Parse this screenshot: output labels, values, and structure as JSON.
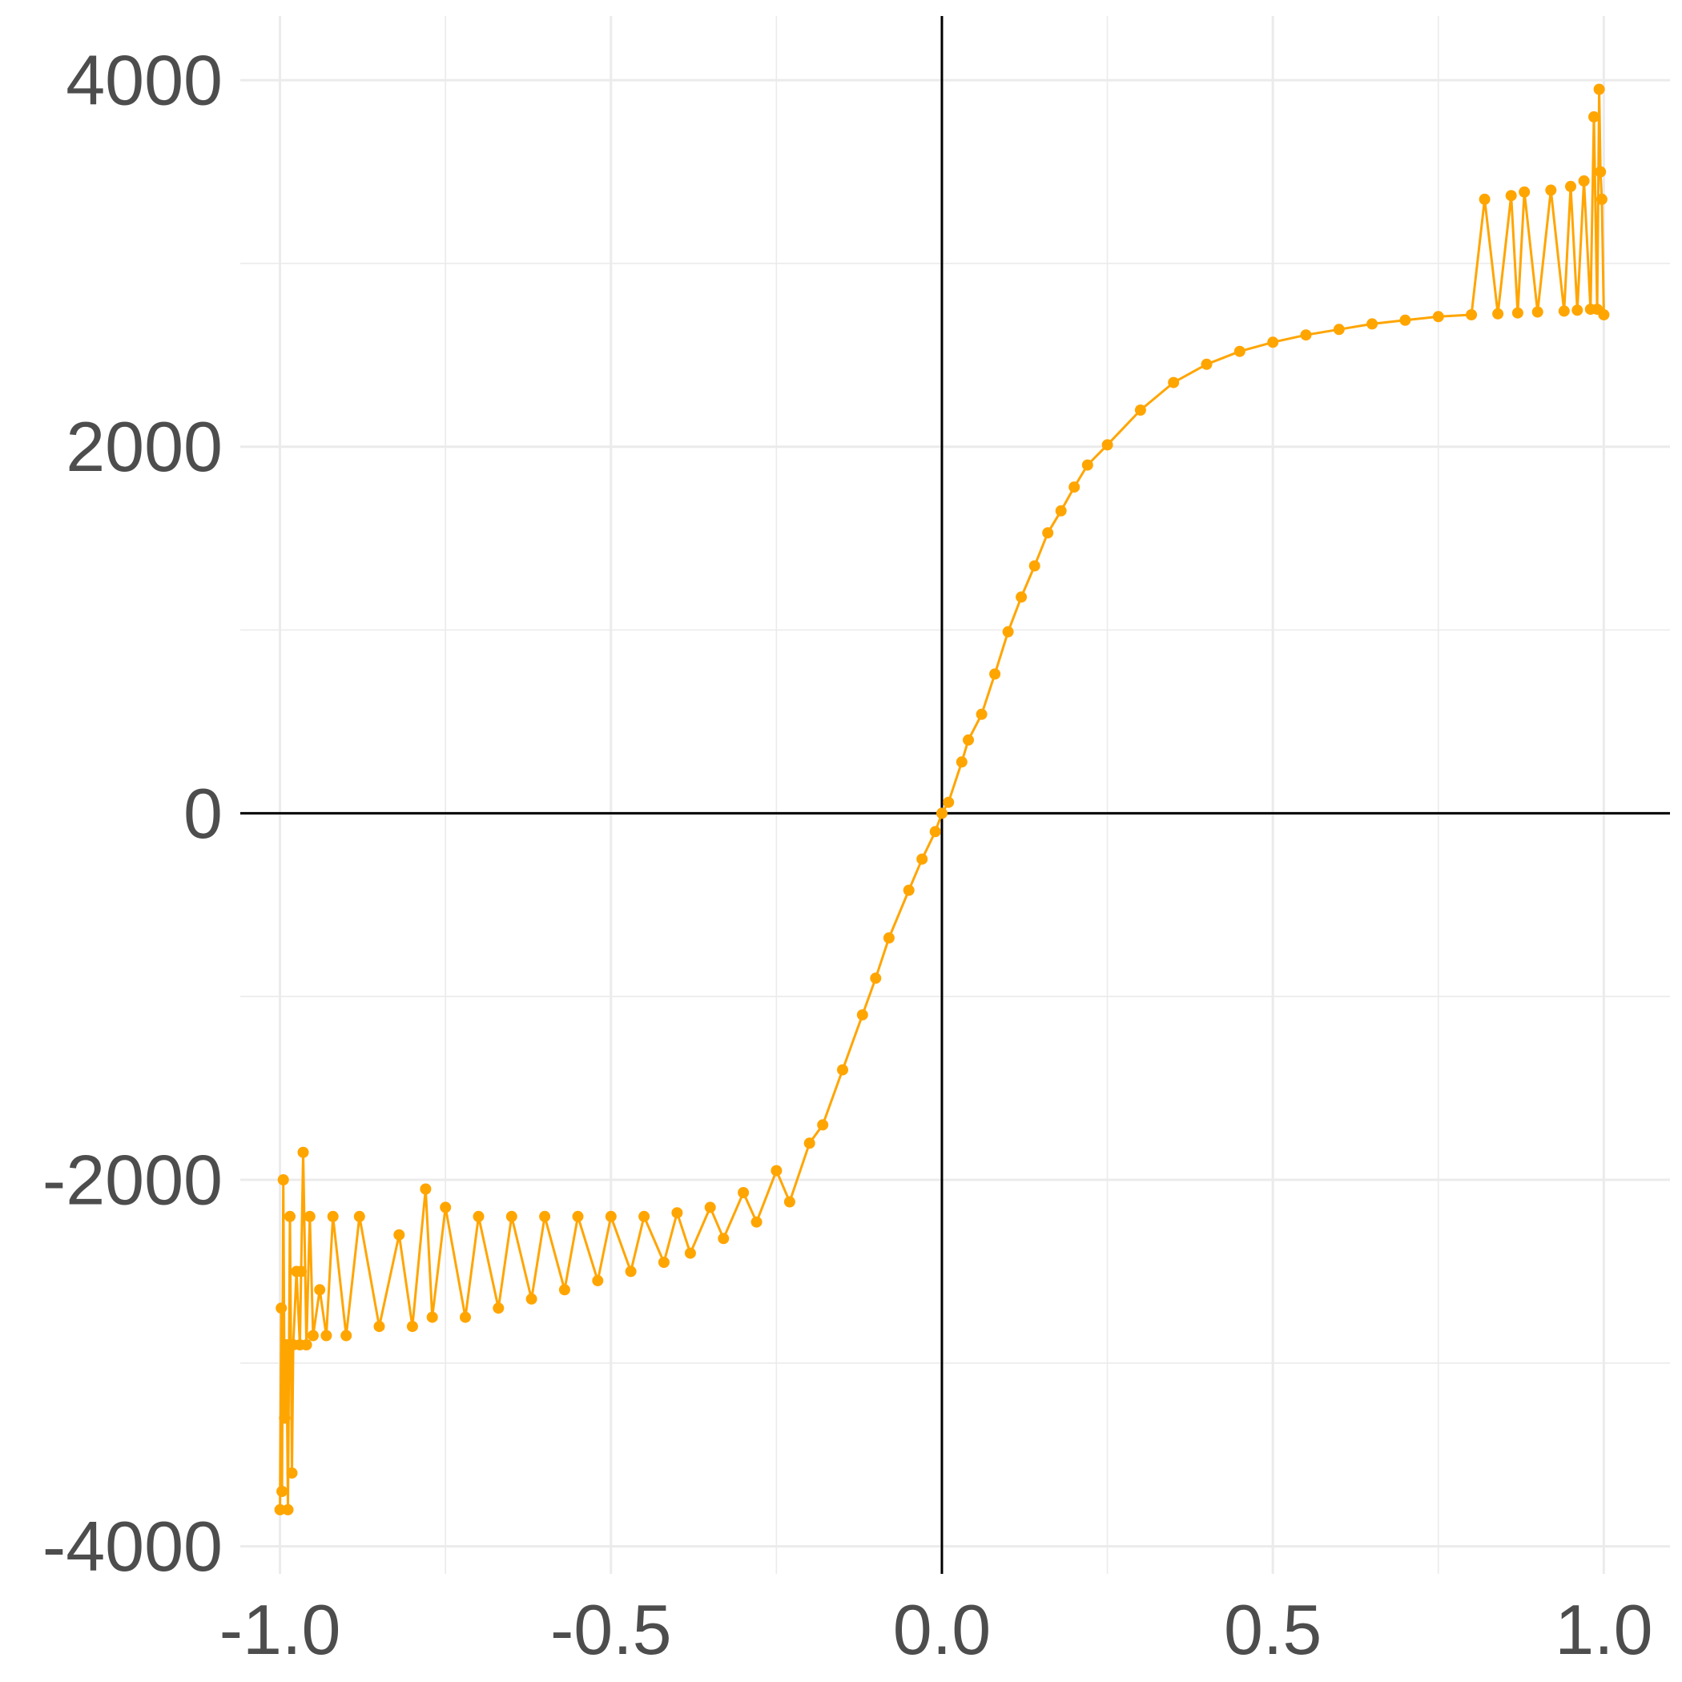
{
  "chart_data": {
    "type": "line",
    "title": "",
    "xlabel": "",
    "ylabel": "",
    "xlim": [
      -1.06,
      1.1
    ],
    "ylim": [
      -4150,
      4350
    ],
    "x_major_ticks": [
      -1.0,
      -0.5,
      0.0,
      0.5,
      1.0
    ],
    "x_tick_labels": [
      "-1.0",
      "-0.5",
      "0.0",
      "0.5",
      "1.0"
    ],
    "x_minor_ticks": [
      -0.75,
      -0.25,
      0.25,
      0.75
    ],
    "y_major_ticks": [
      -4000,
      -2000,
      0,
      2000,
      4000
    ],
    "y_tick_labels": [
      "-4000",
      "-2000",
      "0",
      "2000",
      "4000"
    ],
    "y_minor_ticks": [
      -3000,
      -1000,
      1000,
      3000
    ],
    "grid": true,
    "reference_lines": {
      "x": 0,
      "y": 0
    },
    "legend": "none",
    "color": "#FFA500",
    "markers": true,
    "series": [
      {
        "x": [
          -1.0,
          -0.998,
          -0.997,
          -0.995,
          -0.993,
          -0.99,
          -0.988,
          -0.985,
          -0.982,
          -0.98,
          -0.975,
          -0.97,
          -0.968,
          -0.965,
          -0.96,
          -0.955,
          -0.95,
          -0.94,
          -0.93,
          -0.92,
          -0.9,
          -0.88,
          -0.85,
          -0.82,
          -0.8,
          -0.78,
          -0.77,
          -0.75,
          -0.72,
          -0.7,
          -0.67,
          -0.65,
          -0.62,
          -0.6,
          -0.57,
          -0.55,
          -0.52,
          -0.5,
          -0.47,
          -0.45,
          -0.42,
          -0.4,
          -0.38,
          -0.35,
          -0.33,
          -0.3,
          -0.28,
          -0.25,
          -0.23,
          -0.2,
          -0.18,
          -0.15,
          -0.12,
          -0.1,
          -0.08,
          -0.05,
          -0.03,
          -0.01,
          0.0,
          0.01,
          0.03,
          0.04,
          0.06,
          0.08,
          0.1,
          0.12,
          0.14,
          0.16,
          0.18,
          0.2,
          0.22,
          0.25,
          0.3,
          0.35,
          0.4,
          0.45,
          0.5,
          0.55,
          0.6,
          0.65,
          0.7,
          0.75,
          0.8,
          0.82,
          0.84,
          0.86,
          0.87,
          0.88,
          0.9,
          0.92,
          0.94,
          0.95,
          0.96,
          0.97,
          0.98,
          0.985,
          0.99,
          0.993,
          0.995,
          0.997,
          1.0
        ],
        "y": [
          -3800,
          -2700,
          -3700,
          -2000,
          -3300,
          -2900,
          -3800,
          -2200,
          -3600,
          -2900,
          -2500,
          -2900,
          -2500,
          -1850,
          -2900,
          -2200,
          -2850,
          -2600,
          -2850,
          -2200,
          -2850,
          -2200,
          -2800,
          -2300,
          -2800,
          -2050,
          -2750,
          -2150,
          -2750,
          -2200,
          -2700,
          -2200,
          -2650,
          -2200,
          -2600,
          -2200,
          -2550,
          -2200,
          -2500,
          -2200,
          -2450,
          -2180,
          -2400,
          -2150,
          -2320,
          -2070,
          -2230,
          -1950,
          -2120,
          -1800,
          -1700,
          -1400,
          -1100,
          -900,
          -680,
          -420,
          -250,
          -100,
          0,
          60,
          280,
          400,
          540,
          760,
          990,
          1180,
          1350,
          1530,
          1650,
          1780,
          1900,
          2010,
          2200,
          2350,
          2450,
          2520,
          2570,
          2610,
          2640,
          2670,
          2690,
          2710,
          2720,
          3350,
          2725,
          3370,
          2730,
          3390,
          2735,
          3400,
          2740,
          3420,
          2745,
          3450,
          2750,
          3800,
          2750,
          3950,
          3500,
          3350,
          2720
        ]
      }
    ]
  }
}
